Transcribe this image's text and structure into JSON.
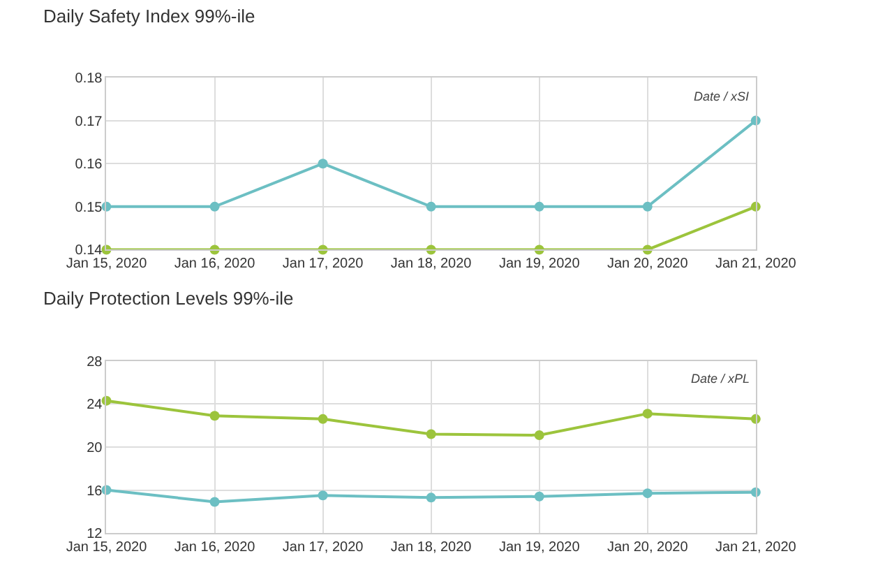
{
  "chart_data": [
    {
      "type": "line",
      "title": "Daily Safety Index 99%-ile",
      "annotations": [
        "Date / xSI"
      ],
      "x": [
        "2020-01-15",
        "2020-01-16",
        "2020-01-17",
        "2020-01-18",
        "2020-01-19",
        "2020-01-20",
        "2020-01-21"
      ],
      "series": [
        {
          "color": "#6cbfc3",
          "values": [
            0.15,
            0.15,
            0.16,
            0.15,
            0.15,
            0.15,
            0.17
          ]
        },
        {
          "color": "#9cc43c",
          "values": [
            0.14,
            0.14,
            0.14,
            0.14,
            0.14,
            0.14,
            0.15
          ]
        }
      ],
      "xlim": [
        "2020-01-15",
        "2020-01-21"
      ],
      "xticks": [
        {
          "value": "2020-01-15",
          "label": "Jan 15, 2020"
        },
        {
          "value": "2020-01-16",
          "label": "Jan 16, 2020"
        },
        {
          "value": "2020-01-17",
          "label": "Jan 17, 2020"
        },
        {
          "value": "2020-01-18",
          "label": "Jan 18, 2020"
        },
        {
          "value": "2020-01-19",
          "label": "Jan 19, 2020"
        },
        {
          "value": "2020-01-20",
          "label": "Jan 20, 2020"
        },
        {
          "value": "2020-01-21",
          "label": "Jan 21, 2020"
        }
      ],
      "ylim": [
        0.14,
        0.18
      ],
      "yticks": [
        0.14,
        0.15,
        0.16,
        0.17,
        0.18
      ],
      "grid": true,
      "marker": "circle",
      "line_style": "solid"
    },
    {
      "type": "line",
      "title": "Daily Protection Levels 99%-ile",
      "annotations": [
        "Date / xPL"
      ],
      "x": [
        "2020-01-15",
        "2020-01-16",
        "2020-01-17",
        "2020-01-18",
        "2020-01-19",
        "2020-01-20",
        "2020-01-21"
      ],
      "series": [
        {
          "color": "#6cbfc3",
          "values": [
            16.0,
            14.9,
            15.5,
            15.3,
            15.4,
            15.7,
            15.8
          ]
        },
        {
          "color": "#9cc43c",
          "values": [
            24.3,
            22.9,
            22.6,
            21.2,
            21.1,
            23.1,
            22.6
          ]
        }
      ],
      "xlim": [
        "2020-01-15",
        "2020-01-21"
      ],
      "xticks": [
        {
          "value": "2020-01-15",
          "label": "Jan 15, 2020"
        },
        {
          "value": "2020-01-16",
          "label": "Jan 16, 2020"
        },
        {
          "value": "2020-01-17",
          "label": "Jan 17, 2020"
        },
        {
          "value": "2020-01-18",
          "label": "Jan 18, 2020"
        },
        {
          "value": "2020-01-19",
          "label": "Jan 19, 2020"
        },
        {
          "value": "2020-01-20",
          "label": "Jan 20, 2020"
        },
        {
          "value": "2020-01-21",
          "label": "Jan 21, 2020"
        }
      ],
      "ylim": [
        12,
        28
      ],
      "yticks": [
        12,
        16,
        20,
        24,
        28
      ],
      "grid": true,
      "marker": "circle",
      "line_style": "solid"
    }
  ]
}
